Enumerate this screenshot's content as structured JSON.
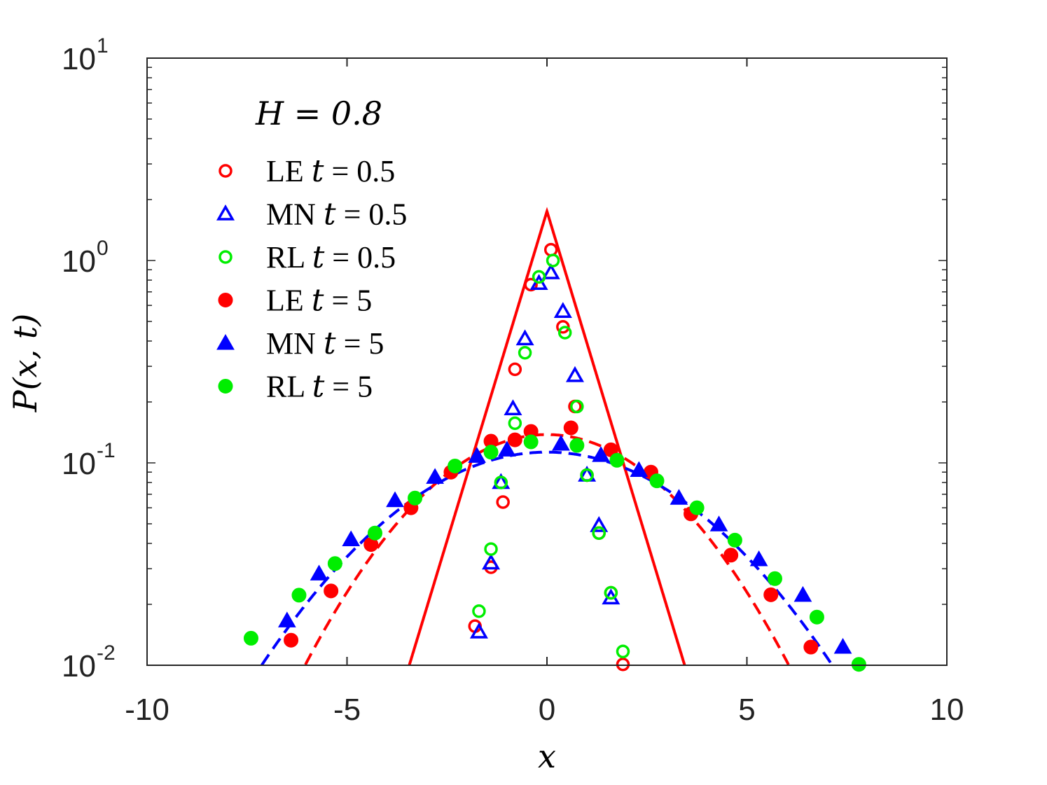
{
  "chart_data": {
    "type": "scatter",
    "title": "",
    "annotation": "H = 0.8",
    "xlabel": "x",
    "ylabel": "P(x, t)",
    "xlim": [
      -10,
      10
    ],
    "ylim": [
      0.01,
      10
    ],
    "yscale": "log",
    "xticks": [
      {
        "value": -10,
        "label": "-10"
      },
      {
        "value": -5,
        "label": "-5"
      },
      {
        "value": 0,
        "label": "0"
      },
      {
        "value": 5,
        "label": "5"
      },
      {
        "value": 10,
        "label": "10"
      }
    ],
    "yticks": [
      {
        "value": 0.01,
        "base": "10",
        "exp": "-2"
      },
      {
        "value": 0.1,
        "base": "10",
        "exp": "-1"
      },
      {
        "value": 1,
        "base": "10",
        "exp": "0"
      },
      {
        "value": 10,
        "base": "10",
        "exp": "1"
      }
    ],
    "legend_position": "top-left",
    "legend": [
      {
        "method": "LE",
        "t": "0.5",
        "marker": "circle",
        "filled": false,
        "color": "#ff0000"
      },
      {
        "method": "MN",
        "t": "0.5",
        "marker": "triangle",
        "filled": false,
        "color": "#0000ff"
      },
      {
        "method": "RL",
        "t": "0.5",
        "marker": "circle",
        "filled": false,
        "color": "#00ee00"
      },
      {
        "method": "LE",
        "t": "5",
        "marker": "circle",
        "filled": true,
        "color": "#ff0000"
      },
      {
        "method": "MN",
        "t": "5",
        "marker": "triangle",
        "filled": true,
        "color": "#0000ff"
      },
      {
        "method": "RL",
        "t": "5",
        "marker": "circle",
        "filled": true,
        "color": "#00ee00"
      }
    ],
    "series": [
      {
        "name": "LE t = 0.5",
        "marker": "circle",
        "filled": false,
        "color": "#ff0000",
        "points": [
          [
            -1.8,
            0.0156
          ],
          [
            -1.4,
            0.0305
          ],
          [
            -1.1,
            0.064
          ],
          [
            -0.8,
            0.29
          ],
          [
            -0.4,
            0.76
          ],
          [
            0.1,
            1.13
          ],
          [
            0.4,
            0.47
          ],
          [
            0.7,
            0.19
          ],
          [
            1.0,
            0.087
          ],
          [
            1.3,
            0.045
          ],
          [
            1.6,
            0.0228
          ],
          [
            1.9,
            0.0101
          ]
        ]
      },
      {
        "name": "MN t = 0.5",
        "marker": "triangle",
        "filled": false,
        "color": "#0000ff",
        "points": [
          [
            -1.7,
            0.0146
          ],
          [
            -1.4,
            0.032
          ],
          [
            -1.15,
            0.08
          ],
          [
            -0.85,
            0.185
          ],
          [
            -0.55,
            0.41
          ],
          [
            -0.2,
            0.77
          ],
          [
            0.1,
            0.87
          ],
          [
            0.4,
            0.56
          ],
          [
            0.7,
            0.27
          ],
          [
            1.0,
            0.087
          ],
          [
            1.3,
            0.049
          ],
          [
            1.6,
            0.0215
          ]
        ]
      },
      {
        "name": "RL t = 0.5",
        "marker": "circle",
        "filled": false,
        "color": "#00ee00",
        "points": [
          [
            -1.7,
            0.0185
          ],
          [
            -1.4,
            0.0375
          ],
          [
            -1.15,
            0.08
          ],
          [
            -0.8,
            0.157
          ],
          [
            -0.55,
            0.35
          ],
          [
            -0.2,
            0.83
          ],
          [
            0.15,
            1.0
          ],
          [
            0.45,
            0.44
          ],
          [
            0.75,
            0.19
          ],
          [
            1.0,
            0.087
          ],
          [
            1.3,
            0.045
          ],
          [
            1.6,
            0.0228
          ],
          [
            1.9,
            0.0117
          ]
        ]
      },
      {
        "name": "LE t = 5",
        "marker": "circle",
        "filled": true,
        "color": "#ff0000",
        "points": [
          [
            -6.4,
            0.0133
          ],
          [
            -5.4,
            0.0233
          ],
          [
            -4.4,
            0.0395
          ],
          [
            -3.4,
            0.06
          ],
          [
            -2.4,
            0.09
          ],
          [
            -1.4,
            0.128
          ],
          [
            -0.8,
            0.13
          ],
          [
            -0.4,
            0.143
          ],
          [
            0.6,
            0.149
          ],
          [
            1.6,
            0.116
          ],
          [
            2.6,
            0.09
          ],
          [
            3.6,
            0.056
          ],
          [
            4.6,
            0.035
          ],
          [
            5.6,
            0.0223
          ],
          [
            6.6,
            0.0123
          ]
        ]
      },
      {
        "name": "MN t = 5",
        "marker": "triangle",
        "filled": true,
        "color": "#0000ff",
        "points": [
          [
            -6.5,
            0.0166
          ],
          [
            -5.7,
            0.0283
          ],
          [
            -4.9,
            0.0418
          ],
          [
            -3.8,
            0.0652
          ],
          [
            -2.8,
            0.085
          ],
          [
            -1.75,
            0.108
          ],
          [
            -1.0,
            0.116
          ],
          [
            0.35,
            0.124
          ],
          [
            1.35,
            0.109
          ],
          [
            2.3,
            0.092
          ],
          [
            3.3,
            0.067
          ],
          [
            4.3,
            0.0495
          ],
          [
            5.3,
            0.0333
          ],
          [
            6.4,
            0.0222
          ],
          [
            7.4,
            0.0123
          ]
        ]
      },
      {
        "name": "RL t = 5",
        "marker": "circle",
        "filled": true,
        "color": "#00ee00",
        "points": [
          [
            -7.4,
            0.0136
          ],
          [
            -6.2,
            0.0222
          ],
          [
            -5.3,
            0.0318
          ],
          [
            -4.3,
            0.045
          ],
          [
            -3.3,
            0.067
          ],
          [
            -2.3,
            0.0965
          ],
          [
            -1.4,
            0.113
          ],
          [
            -0.4,
            0.127
          ],
          [
            0.75,
            0.122
          ],
          [
            1.75,
            0.103
          ],
          [
            2.75,
            0.0815
          ],
          [
            3.75,
            0.06
          ],
          [
            4.7,
            0.0415
          ],
          [
            5.7,
            0.0268
          ],
          [
            6.75,
            0.0173
          ],
          [
            7.8,
            0.0101
          ]
        ]
      }
    ],
    "fit_curves": [
      {
        "style": "solid",
        "color": "#ff0000",
        "peak_x": 0,
        "peak_y": 1.75,
        "decay": 1.5
      },
      {
        "style": "dashed",
        "color": "#ff0000",
        "peak_x": 0,
        "peak_y": 0.138,
        "sigma": 2.64
      },
      {
        "style": "dashed",
        "color": "#0000ff",
        "peak_x": 0,
        "peak_y": 0.113,
        "sigma": 3.24
      }
    ]
  }
}
